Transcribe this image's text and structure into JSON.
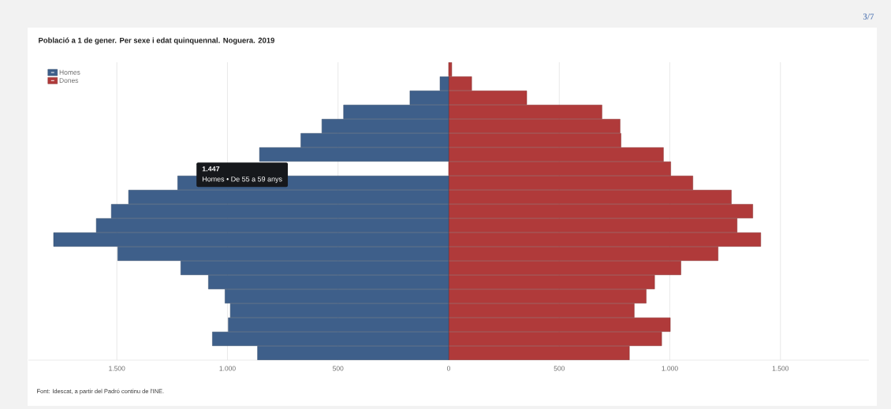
{
  "chart_data": {
    "type": "bar",
    "orientation": "horizontal",
    "stacked": true,
    "title": "Població a 1 de gener. Per sexe i edat quinquennal. Noguera. 2019",
    "categories": [
      null,
      null,
      null,
      null,
      null,
      null,
      null,
      null,
      null,
      null,
      null,
      null,
      null,
      null,
      null,
      null,
      null,
      null,
      null,
      null,
      null
    ],
    "series": [
      {
        "name": "Homes",
        "color": "#3e5f8a",
        "values": [
          null,
          -39,
          -175,
          -475,
          -573,
          -668,
          -855,
          null,
          -1225,
          -1447,
          -1525,
          -1593,
          -1786,
          -1496,
          -1211,
          -1086,
          -1011,
          -987,
          -996,
          -1068,
          -864
        ]
      },
      {
        "name": "Dones",
        "color": "#b03a3a",
        "values": [
          14,
          104,
          353,
          693,
          775,
          779,
          971,
          1004,
          1104,
          1278,
          1375,
          1304,
          1411,
          1218,
          1050,
          931,
          893,
          839,
          1002,
          963,
          817
        ]
      }
    ],
    "xlim": [
      -1900,
      1900
    ],
    "xticks": [
      {
        "value": -1500,
        "label": "1.500"
      },
      {
        "value": -1000,
        "label": "1.000"
      },
      {
        "value": -500,
        "label": "500"
      },
      0,
      500,
      {
        "value": 1000,
        "label": "1.000"
      },
      {
        "value": 1500,
        "label": "1.500"
      }
    ],
    "grid": "x",
    "legend": "top left",
    "annotations": [
      "1.447",
      "Homes • De 55 a 59 anys",
      "Font: Idescat, a partir del Padró continu de l'INE.",
      "3/7"
    ]
  }
}
